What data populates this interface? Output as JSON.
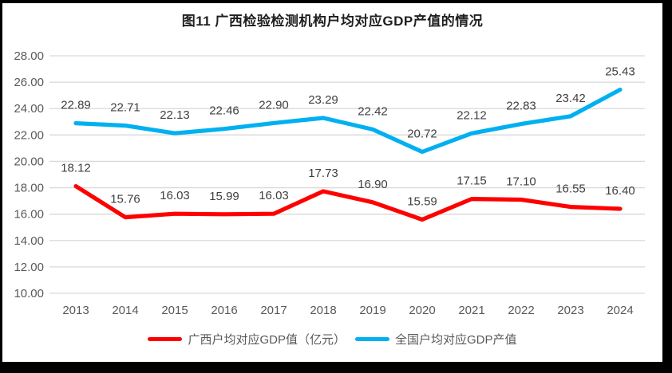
{
  "window": {
    "background": "#FFFFFF",
    "frame_color": "#000000"
  },
  "chart_data": {
    "type": "line",
    "title": "图11 广西检验检测机构户均对应GDP产值的情况",
    "categories": [
      "2013",
      "2014",
      "2015",
      "2016",
      "2017",
      "2018",
      "2019",
      "2020",
      "2021",
      "2022",
      "2023",
      "2024"
    ],
    "series": [
      {
        "name": "广西户均对应GDP值（亿元）",
        "color": "#FF0000",
        "values": [
          18.12,
          15.76,
          16.03,
          15.99,
          16.03,
          17.73,
          16.9,
          15.59,
          17.15,
          17.1,
          16.55,
          16.4
        ],
        "data_labels": [
          "18.12",
          "15.76",
          "16.03",
          "15.99",
          "16.03",
          "17.73",
          "16.90",
          "15.59",
          "17.15",
          "17.10",
          "16.55",
          "16.40"
        ]
      },
      {
        "name": "全国户均对应GDP产值",
        "color": "#00B0F0",
        "values": [
          22.89,
          22.71,
          22.13,
          22.46,
          22.9,
          23.29,
          22.42,
          20.72,
          22.12,
          22.83,
          23.42,
          25.43
        ],
        "data_labels": [
          "22.89",
          "22.71",
          "22.13",
          "22.46",
          "22.90",
          "23.29",
          "22.42",
          "20.72",
          "22.12",
          "22.83",
          "23.42",
          "25.43"
        ]
      }
    ],
    "xlabel": "",
    "ylabel": "",
    "ylim": [
      10,
      28
    ],
    "ytick_step": 2,
    "ytick_labels": [
      "10.00",
      "12.00",
      "14.00",
      "16.00",
      "18.00",
      "20.00",
      "22.00",
      "24.00",
      "26.00",
      "28.00"
    ],
    "grid": true,
    "legend_position": "bottom",
    "styles": {
      "gridline_color": "#D9D9D9",
      "axis_text_color": "#595959",
      "data_label_color": "#404040",
      "title_color": "#1F1F1F"
    }
  }
}
